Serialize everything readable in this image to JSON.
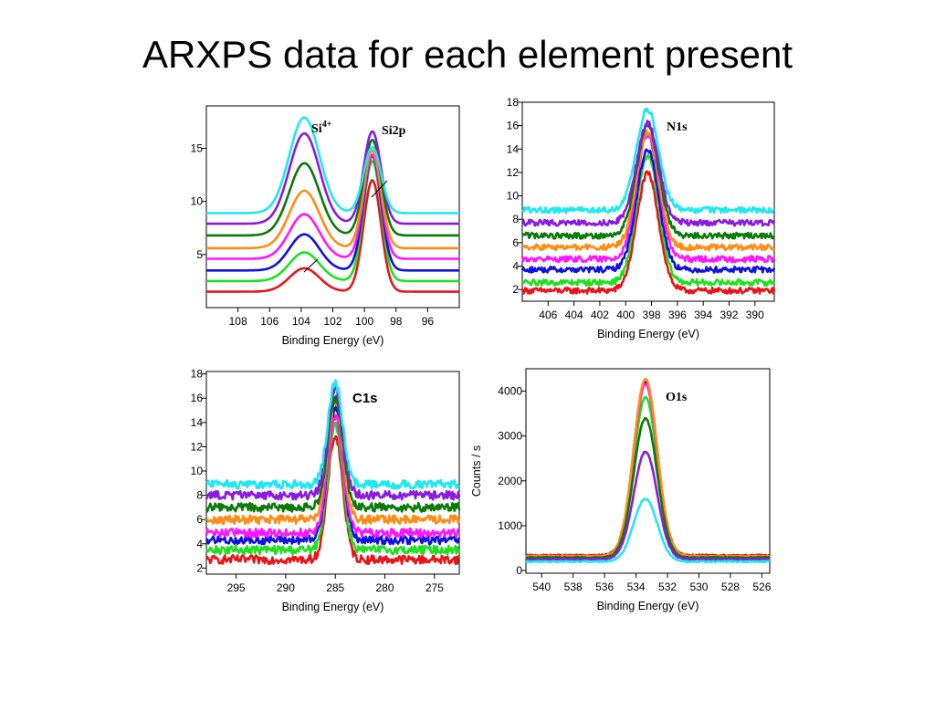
{
  "slide": {
    "title": "ARXPS data for each element present"
  },
  "colors": [
    "#e8141a",
    "#1ee01e",
    "#1010e0",
    "#ff14ff",
    "#ff8c14",
    "#0a7a0a",
    "#8a1ae0",
    "#1ee8f0"
  ],
  "chart_data": [
    {
      "id": "si2p",
      "type": "line",
      "xlabel": "Binding Energy (eV)",
      "ylabel": "",
      "xlim": [
        110,
        94
      ],
      "ylim": [
        0,
        19
      ],
      "x_ticks": [
        108,
        106,
        104,
        102,
        100,
        98,
        96
      ],
      "y_ticks": [
        5,
        10,
        15
      ],
      "annotations": [
        {
          "text": "Si",
          "sup": "4+"
        },
        {
          "text": "Si2p",
          "sup": ""
        }
      ],
      "noise": 0,
      "series": [
        {
          "baseline": 1.5,
          "peaks": [
            {
              "center": 103.8,
              "height": 2.2,
              "sigma": 0.95
            },
            {
              "center": 99.5,
              "height": 10.5,
              "sigma": 0.55
            }
          ]
        },
        {
          "baseline": 2.5,
          "peaks": [
            {
              "center": 103.8,
              "height": 2.7,
              "sigma": 0.95
            },
            {
              "center": 99.5,
              "height": 11.3,
              "sigma": 0.55
            }
          ]
        },
        {
          "baseline": 3.5,
          "peaks": [
            {
              "center": 103.8,
              "height": 3.4,
              "sigma": 0.95
            },
            {
              "center": 99.5,
              "height": 10.8,
              "sigma": 0.55
            }
          ]
        },
        {
          "baseline": 4.6,
          "peaks": [
            {
              "center": 103.8,
              "height": 4.2,
              "sigma": 0.95
            },
            {
              "center": 99.5,
              "height": 9.8,
              "sigma": 0.55
            }
          ]
        },
        {
          "baseline": 5.6,
          "peaks": [
            {
              "center": 103.8,
              "height": 5.4,
              "sigma": 0.95
            },
            {
              "center": 99.5,
              "height": 9.2,
              "sigma": 0.55
            }
          ]
        },
        {
          "baseline": 6.8,
          "peaks": [
            {
              "center": 103.8,
              "height": 6.8,
              "sigma": 0.95
            },
            {
              "center": 99.5,
              "height": 9.0,
              "sigma": 0.55
            }
          ]
        },
        {
          "baseline": 7.9,
          "peaks": [
            {
              "center": 103.8,
              "height": 8.5,
              "sigma": 0.95
            },
            {
              "center": 99.5,
              "height": 8.7,
              "sigma": 0.55
            }
          ]
        },
        {
          "baseline": 8.9,
          "peaks": [
            {
              "center": 103.8,
              "height": 9.0,
              "sigma": 0.95
            },
            {
              "center": 99.5,
              "height": 6.2,
              "sigma": 0.55
            }
          ]
        }
      ]
    },
    {
      "id": "n1s",
      "type": "line",
      "xlabel": "Binding Energy (eV)",
      "ylabel": "",
      "xlim": [
        408,
        388.5
      ],
      "ylim": [
        1,
        18
      ],
      "x_ticks": [
        406,
        404,
        402,
        400,
        398,
        396,
        394,
        392,
        390
      ],
      "y_ticks": [
        2,
        4,
        6,
        8,
        10,
        12,
        14,
        16,
        18
      ],
      "annotations": [
        {
          "text": "N1s",
          "sup": ""
        }
      ],
      "noise": 0.25,
      "series": [
        {
          "baseline": 1.9,
          "peaks": [
            {
              "center": 398.3,
              "height": 10.0,
              "sigma": 0.85
            }
          ]
        },
        {
          "baseline": 2.6,
          "peaks": [
            {
              "center": 398.3,
              "height": 10.8,
              "sigma": 0.85
            }
          ]
        },
        {
          "baseline": 3.7,
          "peaks": [
            {
              "center": 398.3,
              "height": 10.3,
              "sigma": 0.85
            }
          ]
        },
        {
          "baseline": 4.6,
          "peaks": [
            {
              "center": 398.3,
              "height": 10.6,
              "sigma": 0.85
            }
          ]
        },
        {
          "baseline": 5.6,
          "peaks": [
            {
              "center": 398.3,
              "height": 9.8,
              "sigma": 0.85
            }
          ]
        },
        {
          "baseline": 6.6,
          "peaks": [
            {
              "center": 398.3,
              "height": 9.4,
              "sigma": 0.85
            }
          ]
        },
        {
          "baseline": 7.7,
          "peaks": [
            {
              "center": 398.3,
              "height": 8.5,
              "sigma": 0.85
            }
          ]
        },
        {
          "baseline": 8.8,
          "peaks": [
            {
              "center": 398.3,
              "height": 8.6,
              "sigma": 0.85
            }
          ]
        }
      ]
    },
    {
      "id": "c1s",
      "type": "line",
      "xlabel": "Binding Energy (eV)",
      "ylabel": "",
      "xlim": [
        298,
        272.5
      ],
      "ylim": [
        1.5,
        18.2
      ],
      "x_ticks": [
        295,
        290,
        285,
        280,
        275
      ],
      "y_ticks": [
        2,
        4,
        6,
        8,
        10,
        12,
        14,
        16,
        18
      ],
      "annotations": [
        {
          "text": "C1s",
          "sup": ""
        }
      ],
      "noise": 0.35,
      "series": [
        {
          "baseline": 2.7,
          "peaks": [
            {
              "center": 285.0,
              "height": 10.2,
              "sigma": 0.75
            }
          ]
        },
        {
          "baseline": 3.5,
          "peaks": [
            {
              "center": 285.0,
              "height": 10.4,
              "sigma": 0.75
            }
          ]
        },
        {
          "baseline": 4.3,
          "peaks": [
            {
              "center": 285.0,
              "height": 10.8,
              "sigma": 0.75
            }
          ]
        },
        {
          "baseline": 4.9,
          "peaks": [
            {
              "center": 285.0,
              "height": 9.6,
              "sigma": 0.75
            }
          ]
        },
        {
          "baseline": 6.0,
          "peaks": [
            {
              "center": 285.0,
              "height": 9.8,
              "sigma": 0.75
            }
          ]
        },
        {
          "baseline": 7.0,
          "peaks": [
            {
              "center": 285.0,
              "height": 9.0,
              "sigma": 0.75
            }
          ]
        },
        {
          "baseline": 8.0,
          "peaks": [
            {
              "center": 285.0,
              "height": 8.8,
              "sigma": 0.75
            }
          ]
        },
        {
          "baseline": 8.9,
          "peaks": [
            {
              "center": 285.0,
              "height": 8.4,
              "sigma": 0.75
            }
          ]
        }
      ]
    },
    {
      "id": "o1s",
      "type": "line",
      "xlabel": "Binding Energy (eV)",
      "ylabel": "Counts / s",
      "xlim": [
        541,
        525.5
      ],
      "ylim": [
        -60,
        4500
      ],
      "x_ticks": [
        540,
        538,
        536,
        534,
        532,
        530,
        528,
        526
      ],
      "y_ticks": [
        0,
        1000,
        2000,
        3000,
        4000
      ],
      "annotations": [
        {
          "text": "O1s",
          "sup": ""
        }
      ],
      "noise": 14,
      "series": [
        {
          "baseline": 340,
          "peaks": [
            {
              "center": 533.4,
              "height": 3850,
              "sigma": 0.75
            }
          ]
        },
        {
          "baseline": 310,
          "peaks": [
            {
              "center": 533.4,
              "height": 3550,
              "sigma": 0.75
            }
          ]
        },
        {
          "baseline": 280,
          "peaks": [
            {
              "center": 533.4,
              "height": 3900,
              "sigma": 0.75
            }
          ]
        },
        {
          "baseline": 300,
          "peaks": [
            {
              "center": 533.4,
              "height": 3850,
              "sigma": 0.75
            }
          ]
        },
        {
          "baseline": 320,
          "peaks": [
            {
              "center": 533.4,
              "height": 3950,
              "sigma": 0.75
            }
          ]
        },
        {
          "baseline": 290,
          "peaks": [
            {
              "center": 533.4,
              "height": 3100,
              "sigma": 0.75
            }
          ]
        },
        {
          "baseline": 250,
          "peaks": [
            {
              "center": 533.4,
              "height": 2400,
              "sigma": 0.75
            }
          ]
        },
        {
          "baseline": 200,
          "peaks": [
            {
              "center": 533.4,
              "height": 1400,
              "sigma": 0.75
            }
          ]
        }
      ]
    }
  ]
}
